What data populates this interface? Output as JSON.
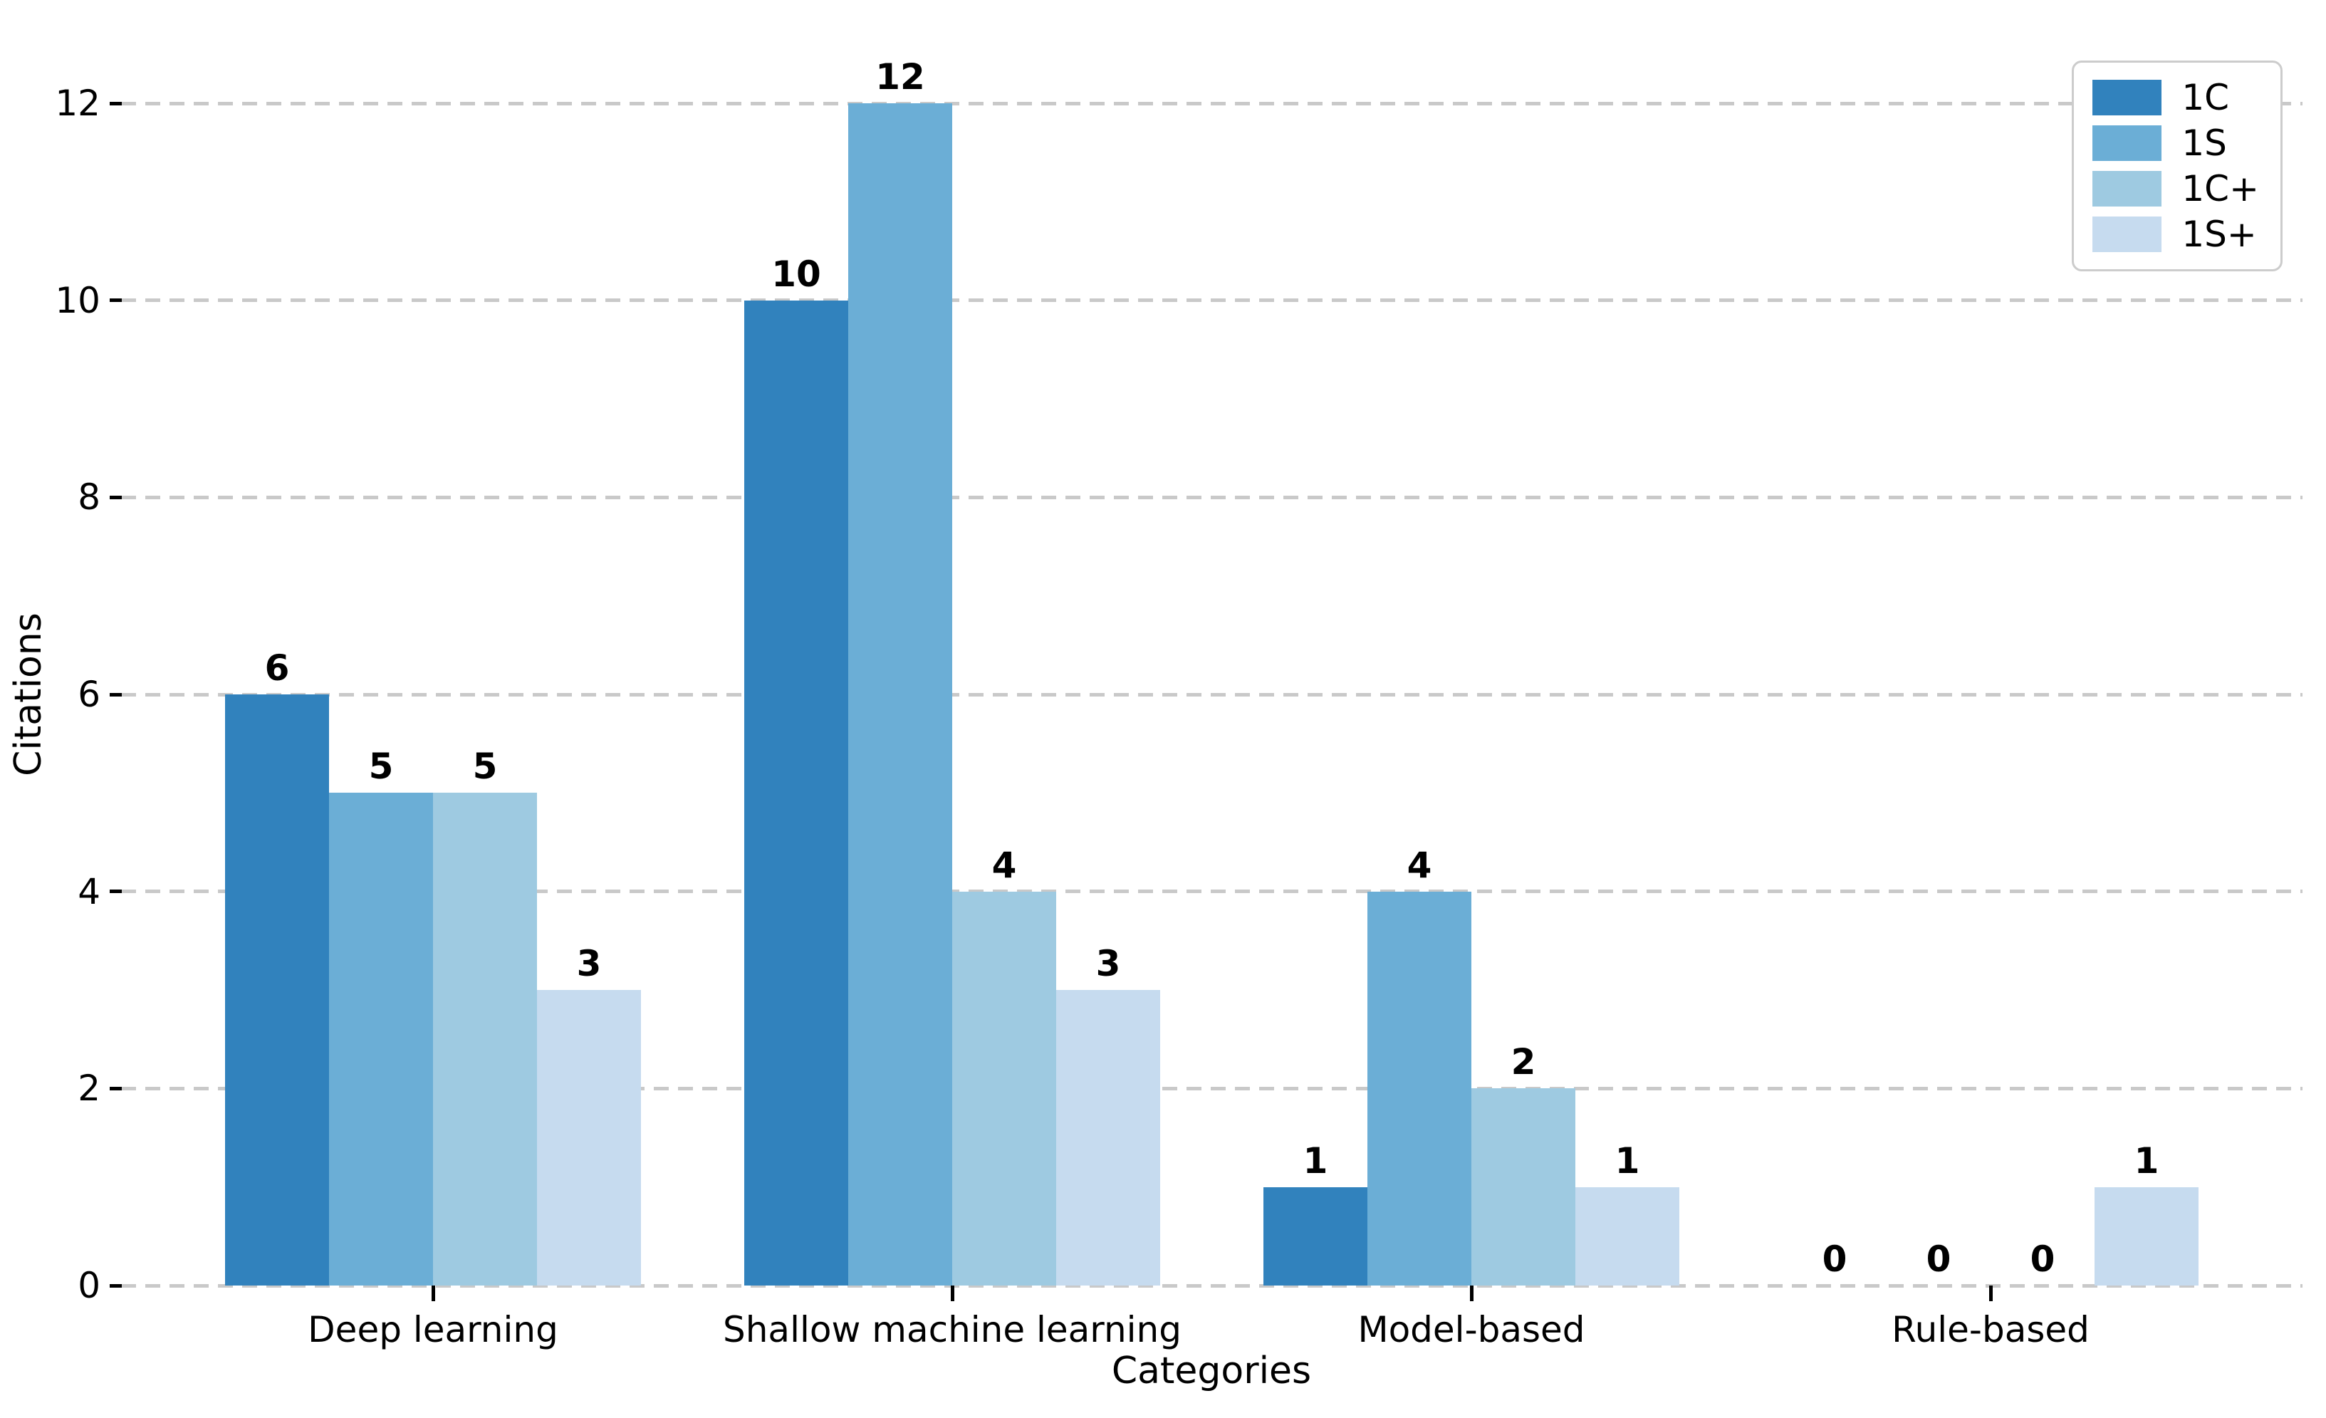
{
  "chart_data": {
    "type": "bar",
    "title": "",
    "xlabel": "Categories",
    "ylabel": "Citations",
    "categories": [
      "Deep learning",
      "Shallow machine learning",
      "Model-based",
      "Rule-based"
    ],
    "series": [
      {
        "name": "1C",
        "color": "#3182bd",
        "values": [
          6,
          10,
          1,
          0
        ]
      },
      {
        "name": "1S",
        "color": "#6baed6",
        "values": [
          5,
          12,
          4,
          0
        ]
      },
      {
        "name": "1C+",
        "color": "#9ecae1",
        "values": [
          5,
          4,
          2,
          0
        ]
      },
      {
        "name": "1S+",
        "color": "#c6dbef",
        "values": [
          3,
          3,
          1,
          1
        ]
      }
    ],
    "yticks": [
      0,
      2,
      4,
      6,
      8,
      10,
      12
    ],
    "ylim": [
      0,
      12.6
    ],
    "bar_value_labels": true,
    "grid": "horizontal dashed",
    "gridline_color": "#c9c9c9",
    "legend_position": "upper right",
    "text_color": "#000000"
  }
}
